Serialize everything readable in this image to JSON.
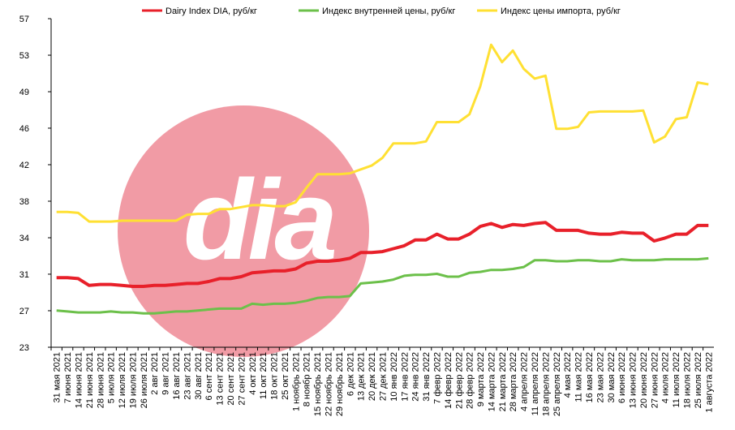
{
  "chart_data": {
    "type": "line",
    "watermark": "dia",
    "categories": [
      "31 мая 2021",
      "7 июня 2021",
      "14 июня 2021",
      "21 июня 2021",
      "28 июня 2021",
      "5 июля 2021",
      "12 июля 2021",
      "19 июля 2021",
      "26 июля 2021",
      "2 авг 2021",
      "9 авг 2021",
      "16 авг 2021",
      "23 авг 2021",
      "30 авг 2021",
      "6 сент 2021",
      "13 сент 2021",
      "20 сент 2021",
      "27 сент 2021",
      "4 окт 2021",
      "11 окт 2021",
      "18 окт 2021",
      "25 окт 2021",
      "1 ноябрь 2021",
      "8 ноябр 2021",
      "15 ноябрь 2021",
      "22 ноябрь 2021",
      "29 ноябрь 2021",
      "6 дек 2021",
      "13 дек 2021",
      "20 дек 2021",
      "27 дек 2021",
      "10 янв 2022",
      "17 янв 2022",
      "24 янв 2022",
      "31 янв 2022",
      "7 февр 2022",
      "14 февр 2022",
      "21 февр 2022",
      "28 февр 2022",
      "9 марта 2022",
      "14 марта 2022",
      "21 марта 2022",
      "28 марта 2022",
      "4 апреля 2022",
      "11 апреля 2022",
      "18 апреля 2022",
      "25 апреля 2022",
      "4 мая 2022",
      "11 мая 2022",
      "16 мая 2022",
      "23 мая 2022",
      "30 мая 2022",
      "6 июня 2022",
      "13 июня 2022",
      "20 июня 2022",
      "27 июня 2022",
      "4 июля 2022",
      "11 июля 2022",
      "18 июля 2022",
      "25 июля 2022",
      "1 августа 2022"
    ],
    "series": [
      {
        "name": "Dairy Index DIA, руб/кг",
        "color": "#e8202a",
        "width": 4,
        "values": [
          30.2,
          30.2,
          30.1,
          29.4,
          29.5,
          29.5,
          29.4,
          29.3,
          29.3,
          29.4,
          29.4,
          29.5,
          29.6,
          29.6,
          29.8,
          30.1,
          30.1,
          30.3,
          30.7,
          30.8,
          30.9,
          30.9,
          31.1,
          31.7,
          31.9,
          31.9,
          32.0,
          32.2,
          32.8,
          32.8,
          32.9,
          33.2,
          33.5,
          34.1,
          34.1,
          34.7,
          34.2,
          34.2,
          34.7,
          35.5,
          35.8,
          35.4,
          35.7,
          35.6,
          35.8,
          35.9,
          35.1,
          35.1,
          35.1,
          34.8,
          34.7,
          34.7,
          34.9,
          34.8,
          34.8,
          34.0,
          34.3,
          34.7,
          34.7,
          35.6,
          35.6
        ]
      },
      {
        "name": "Индекс внутренней цены, руб/кг",
        "color": "#6cc04a",
        "width": 3,
        "values": [
          26.8,
          26.7,
          26.6,
          26.6,
          26.6,
          26.7,
          26.6,
          26.6,
          26.5,
          26.5,
          26.6,
          26.7,
          26.7,
          26.8,
          26.9,
          27.0,
          27.0,
          27.0,
          27.5,
          27.4,
          27.5,
          27.5,
          27.6,
          27.8,
          28.1,
          28.2,
          28.2,
          28.3,
          29.6,
          29.7,
          29.8,
          30.0,
          30.4,
          30.5,
          30.5,
          30.6,
          30.3,
          30.3,
          30.7,
          30.8,
          31.0,
          31.0,
          31.1,
          31.3,
          32.0,
          32.0,
          31.9,
          31.9,
          32.0,
          32.0,
          31.9,
          31.9,
          32.1,
          32.0,
          32.0,
          32.0,
          32.1,
          32.1,
          32.1,
          32.1,
          32.2
        ]
      },
      {
        "name": "Индекс цены импорта, руб/кг",
        "color": "#ffe033",
        "width": 3,
        "values": [
          37.0,
          37.0,
          36.9,
          36.0,
          36.0,
          36.0,
          36.1,
          36.1,
          36.1,
          36.1,
          36.1,
          36.1,
          36.7,
          36.8,
          36.8,
          37.3,
          37.3,
          37.5,
          37.7,
          37.7,
          37.6,
          37.6,
          38.0,
          39.5,
          40.9,
          40.9,
          40.9,
          41.0,
          41.4,
          41.8,
          42.6,
          44.1,
          44.1,
          44.1,
          44.3,
          46.3,
          46.3,
          46.3,
          47.1,
          50.0,
          54.3,
          52.5,
          53.7,
          51.8,
          50.8,
          51.1,
          45.6,
          45.6,
          45.8,
          47.3,
          47.4,
          47.4,
          47.4,
          47.4,
          47.5,
          44.2,
          44.8,
          46.6,
          46.8,
          50.4,
          50.2
        ]
      }
    ],
    "ylim": [
      23,
      57
    ],
    "yticks": [
      23,
      {
        "value": 26.78,
        "label": "27"
      },
      {
        "value": 30.56,
        "label": "31"
      },
      {
        "value": 34.33,
        "label": "34"
      },
      {
        "value": 38.11,
        "label": "38"
      },
      {
        "value": 41.89,
        "label": "42"
      },
      {
        "value": 45.67,
        "label": "46"
      },
      {
        "value": 49.44,
        "label": "49"
      },
      {
        "value": 53.22,
        "label": "53"
      },
      57
    ],
    "grid": false
  }
}
